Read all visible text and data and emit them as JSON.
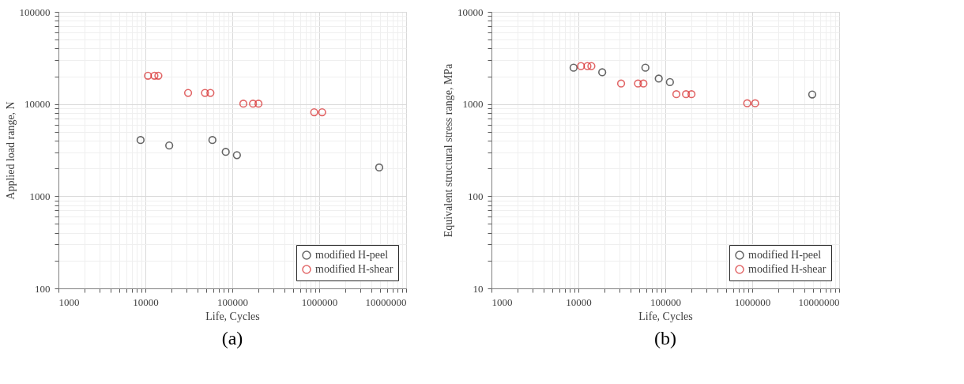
{
  "chart_data": [
    {
      "type": "scatter",
      "title": "(a)",
      "xlabel": "Life, Cycles",
      "ylabel": "Applied load range, N",
      "log": "xy",
      "grid": true,
      "legend": "bottom right",
      "marker": "circle",
      "xlim": [
        1000,
        10000000
      ],
      "ylim": [
        100,
        100000
      ],
      "xticks": [
        1000,
        {
          "value": 2000,
          "label": null
        },
        {
          "value": 3000,
          "label": null
        },
        {
          "value": 4000,
          "label": null
        },
        {
          "value": 5000,
          "label": null
        },
        {
          "value": 6000,
          "label": null
        },
        {
          "value": 7000,
          "label": null
        },
        {
          "value": 8000,
          "label": null
        },
        {
          "value": 9000,
          "label": null
        },
        10000,
        {
          "value": 20000,
          "label": null
        },
        {
          "value": 30000,
          "label": null
        },
        {
          "value": 40000,
          "label": null
        },
        {
          "value": 50000,
          "label": null
        },
        {
          "value": 60000,
          "label": null
        },
        {
          "value": 70000,
          "label": null
        },
        {
          "value": 80000,
          "label": null
        },
        {
          "value": 90000,
          "label": null
        },
        100000,
        {
          "value": 200000,
          "label": null
        },
        {
          "value": 300000,
          "label": null
        },
        {
          "value": 400000,
          "label": null
        },
        {
          "value": 500000,
          "label": null
        },
        {
          "value": 600000,
          "label": null
        },
        {
          "value": 700000,
          "label": null
        },
        {
          "value": 800000,
          "label": null
        },
        {
          "value": 900000,
          "label": null
        },
        1000000,
        {
          "value": 2000000,
          "label": null
        },
        {
          "value": 3000000,
          "label": null
        },
        {
          "value": 4000000,
          "label": null
        },
        {
          "value": 5000000,
          "label": null
        },
        {
          "value": 6000000,
          "label": null
        },
        {
          "value": 7000000,
          "label": null
        },
        {
          "value": 8000000,
          "label": null
        },
        {
          "value": 9000000,
          "label": null
        },
        10000000
      ],
      "yticks": [
        100,
        {
          "value": 200,
          "label": null
        },
        {
          "value": 300,
          "label": null
        },
        {
          "value": 400,
          "label": null
        },
        {
          "value": 500,
          "label": null
        },
        {
          "value": 600,
          "label": null
        },
        {
          "value": 700,
          "label": null
        },
        {
          "value": 800,
          "label": null
        },
        {
          "value": 900,
          "label": null
        },
        1000,
        {
          "value": 2000,
          "label": null
        },
        {
          "value": 3000,
          "label": null
        },
        {
          "value": 4000,
          "label": null
        },
        {
          "value": 5000,
          "label": null
        },
        {
          "value": 6000,
          "label": null
        },
        {
          "value": 7000,
          "label": null
        },
        {
          "value": 8000,
          "label": null
        },
        {
          "value": 9000,
          "label": null
        },
        10000,
        {
          "value": 20000,
          "label": null
        },
        {
          "value": 30000,
          "label": null
        },
        {
          "value": 40000,
          "label": null
        },
        {
          "value": 50000,
          "label": null
        },
        {
          "value": 60000,
          "label": null
        },
        {
          "value": 70000,
          "label": null
        },
        {
          "value": 80000,
          "label": null
        },
        {
          "value": 90000,
          "label": null
        },
        100000
      ],
      "series": [
        {
          "name": "modified H-peel",
          "color": "#262626",
          "x": [
            8800,
            18800,
            59000,
            84000,
            113000,
            4900000
          ],
          "values": [
            4070,
            3550,
            4070,
            3030,
            2790,
            2050
          ]
        },
        {
          "name": "modified H-shear",
          "color": "#d62728",
          "x": [
            10700,
            12700,
            14100,
            31000,
            48500,
            56000,
            134000,
            173000,
            200000,
            875000,
            1080000
          ],
          "values": [
            20300,
            20300,
            20300,
            13200,
            13200,
            13200,
            10100,
            10100,
            10100,
            8150,
            8150
          ]
        }
      ]
    },
    {
      "type": "scatter",
      "title": "(b)",
      "xlabel": "Life, Cycles",
      "ylabel": "Equivalent structural stress range, MPa",
      "log": "xy",
      "grid": true,
      "legend": "bottom right",
      "marker": "circle",
      "xlim": [
        1000,
        10000000
      ],
      "ylim": [
        10,
        10000
      ],
      "xticks": [
        1000,
        {
          "value": 2000,
          "label": null
        },
        {
          "value": 3000,
          "label": null
        },
        {
          "value": 4000,
          "label": null
        },
        {
          "value": 5000,
          "label": null
        },
        {
          "value": 6000,
          "label": null
        },
        {
          "value": 7000,
          "label": null
        },
        {
          "value": 8000,
          "label": null
        },
        {
          "value": 9000,
          "label": null
        },
        10000,
        {
          "value": 20000,
          "label": null
        },
        {
          "value": 30000,
          "label": null
        },
        {
          "value": 40000,
          "label": null
        },
        {
          "value": 50000,
          "label": null
        },
        {
          "value": 60000,
          "label": null
        },
        {
          "value": 70000,
          "label": null
        },
        {
          "value": 80000,
          "label": null
        },
        {
          "value": 90000,
          "label": null
        },
        100000,
        {
          "value": 200000,
          "label": null
        },
        {
          "value": 300000,
          "label": null
        },
        {
          "value": 400000,
          "label": null
        },
        {
          "value": 500000,
          "label": null
        },
        {
          "value": 600000,
          "label": null
        },
        {
          "value": 700000,
          "label": null
        },
        {
          "value": 800000,
          "label": null
        },
        {
          "value": 900000,
          "label": null
        },
        1000000,
        {
          "value": 2000000,
          "label": null
        },
        {
          "value": 3000000,
          "label": null
        },
        {
          "value": 4000000,
          "label": null
        },
        {
          "value": 5000000,
          "label": null
        },
        {
          "value": 6000000,
          "label": null
        },
        {
          "value": 7000000,
          "label": null
        },
        {
          "value": 8000000,
          "label": null
        },
        {
          "value": 9000000,
          "label": null
        },
        10000000
      ],
      "yticks": [
        10,
        {
          "value": 20,
          "label": null
        },
        {
          "value": 30,
          "label": null
        },
        {
          "value": 40,
          "label": null
        },
        {
          "value": 50,
          "label": null
        },
        {
          "value": 60,
          "label": null
        },
        {
          "value": 70,
          "label": null
        },
        {
          "value": 80,
          "label": null
        },
        {
          "value": 90,
          "label": null
        },
        100,
        {
          "value": 200,
          "label": null
        },
        {
          "value": 300,
          "label": null
        },
        {
          "value": 400,
          "label": null
        },
        {
          "value": 500,
          "label": null
        },
        {
          "value": 600,
          "label": null
        },
        {
          "value": 700,
          "label": null
        },
        {
          "value": 800,
          "label": null
        },
        {
          "value": 900,
          "label": null
        },
        1000,
        {
          "value": 2000,
          "label": null
        },
        {
          "value": 3000,
          "label": null
        },
        {
          "value": 4000,
          "label": null
        },
        {
          "value": 5000,
          "label": null
        },
        {
          "value": 6000,
          "label": null
        },
        {
          "value": 7000,
          "label": null
        },
        {
          "value": 8000,
          "label": null
        },
        {
          "value": 9000,
          "label": null
        },
        10000
      ],
      "series": [
        {
          "name": "modified H-peel",
          "color": "#262626",
          "x": [
            8800,
            18800,
            59000,
            84000,
            113000,
            4900000
          ],
          "values": [
            2480,
            2210,
            2480,
            1890,
            1730,
            1270
          ]
        },
        {
          "name": "modified H-shear",
          "color": "#d62728",
          "x": [
            10700,
            12700,
            14100,
            31000,
            48500,
            56000,
            134000,
            173000,
            200000,
            875000,
            1080000
          ],
          "values": [
            2580,
            2580,
            2580,
            1670,
            1670,
            1670,
            1280,
            1280,
            1280,
            1020,
            1020
          ]
        }
      ]
    }
  ]
}
